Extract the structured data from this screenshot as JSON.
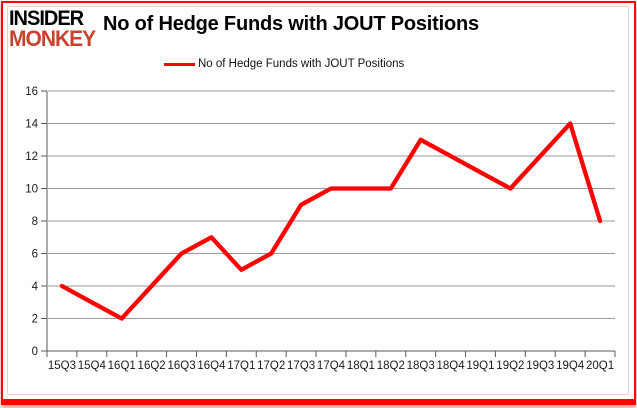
{
  "logo": {
    "line1": "INSIDER",
    "line2": "MONKEY",
    "line1_color": "#000000",
    "line2_color": "#c8432e"
  },
  "header": {
    "title": "No of Hedge Funds with JOUT Positions"
  },
  "legend": {
    "label": "No of Hedge Funds with JOUT Positions",
    "swatch_color": "#fe0101"
  },
  "chart_data": {
    "type": "line",
    "title": "No of Hedge Funds with JOUT Positions",
    "categories": [
      "15Q3",
      "15Q4",
      "16Q1",
      "16Q2",
      "16Q3",
      "16Q4",
      "17Q1",
      "17Q2",
      "17Q3",
      "17Q4",
      "18Q1",
      "18Q2",
      "18Q3",
      "18Q4",
      "19Q1",
      "19Q2",
      "19Q3",
      "19Q4",
      "20Q1"
    ],
    "series": [
      {
        "name": "No of Hedge Funds with JOUT Positions",
        "color": "#fe0101",
        "values": [
          4,
          3,
          2,
          4,
          6,
          7,
          5,
          6,
          9,
          10,
          10,
          10,
          13,
          12,
          11,
          10,
          12,
          14,
          8
        ]
      }
    ],
    "ylim": [
      0,
      16
    ],
    "ytick_step": 2,
    "grid": true,
    "legend_position": "top",
    "xlabel": "",
    "ylabel": "",
    "gridline_color": "#999999",
    "axis_color": "#595959",
    "tick_label_color": "#1a1a1a"
  }
}
